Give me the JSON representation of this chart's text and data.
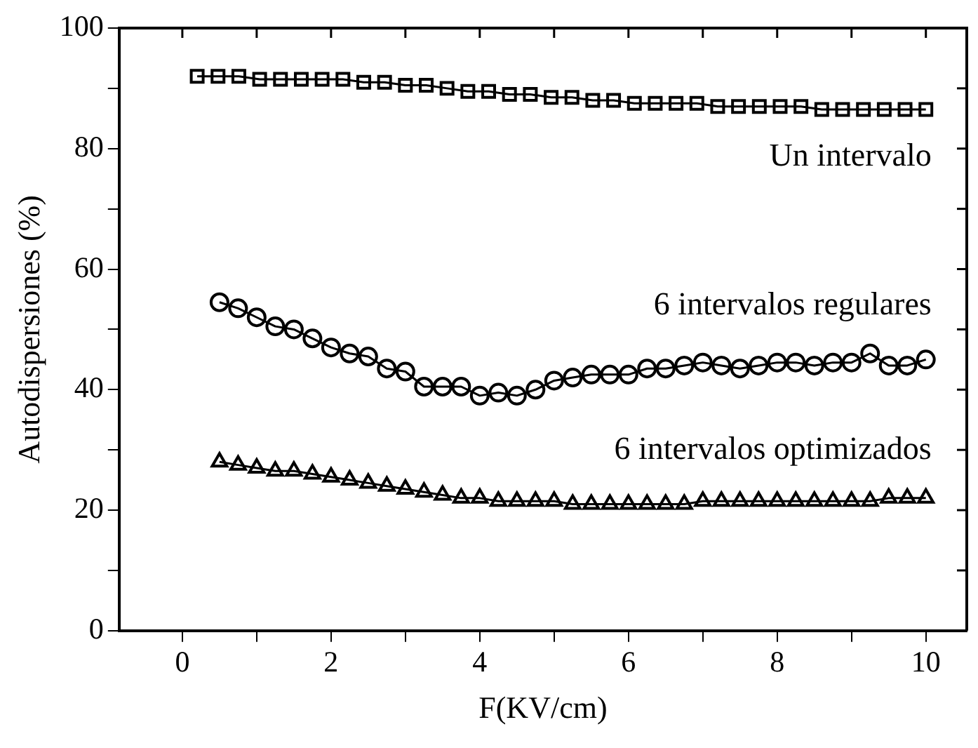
{
  "chart_data": {
    "type": "line",
    "xlabel": "F(KV/cm)",
    "ylabel": "Autodispersiones (%)",
    "xlim": [
      -0.85,
      10.55
    ],
    "ylim": [
      0,
      100
    ],
    "xticks": [
      0,
      {
        "value": 1,
        "label": null
      },
      2,
      {
        "value": 3,
        "label": null
      },
      4,
      {
        "value": 5,
        "label": null
      },
      6,
      {
        "value": 7,
        "label": null
      },
      8,
      {
        "value": 9,
        "label": null
      },
      10
    ],
    "yticks": [
      0,
      {
        "value": 10,
        "label": null
      },
      20,
      {
        "value": 30,
        "label": null
      },
      40,
      {
        "value": 50,
        "label": null
      },
      60,
      {
        "value": 70,
        "label": null
      },
      80,
      {
        "value": 90,
        "label": null
      },
      100
    ],
    "grid": false,
    "legend": false,
    "line_style": "solid",
    "series": [
      {
        "marker": "square",
        "color": "#000000",
        "x": [
          0.2,
          0.48,
          0.76,
          1.04,
          1.32,
          1.6,
          1.88,
          2.16,
          2.44,
          2.72,
          3.0,
          3.28,
          3.56,
          3.84,
          4.12,
          4.4,
          4.68,
          4.96,
          5.24,
          5.52,
          5.8,
          6.08,
          6.36,
          6.64,
          6.92,
          7.2,
          7.48,
          7.76,
          8.04,
          8.32,
          8.6,
          8.88,
          9.16,
          9.44,
          9.72,
          10.0
        ],
        "values": [
          92,
          92,
          92,
          91.5,
          91.5,
          91.5,
          91.5,
          91.5,
          91,
          91,
          90.5,
          90.5,
          90,
          89.5,
          89.5,
          89,
          89,
          88.5,
          88.5,
          88,
          88,
          87.5,
          87.5,
          87.5,
          87.5,
          87,
          87,
          87,
          87,
          87,
          86.5,
          86.5,
          86.5,
          86.5,
          86.5,
          86.5
        ]
      },
      {
        "marker": "circle",
        "color": "#000000",
        "x": [
          0.5,
          0.75,
          1.0,
          1.25,
          1.5,
          1.75,
          2.0,
          2.25,
          2.5,
          2.75,
          3.0,
          3.25,
          3.5,
          3.75,
          4.0,
          4.25,
          4.5,
          4.75,
          5.0,
          5.25,
          5.5,
          5.75,
          6.0,
          6.25,
          6.5,
          6.75,
          7.0,
          7.25,
          7.5,
          7.75,
          8.0,
          8.25,
          8.5,
          8.75,
          9.0,
          9.25,
          9.5,
          9.75,
          10.0
        ],
        "values": [
          54.5,
          53.5,
          52,
          50.5,
          50,
          48.5,
          47,
          46,
          45.5,
          43.5,
          43,
          40.5,
          40.5,
          40.5,
          39,
          39.5,
          39,
          40,
          41.5,
          42,
          42.5,
          42.5,
          42.5,
          43.5,
          43.5,
          44,
          44.5,
          44,
          43.5,
          44,
          44.5,
          44.5,
          44,
          44.5,
          44.5,
          46,
          44,
          44,
          45
        ]
      },
      {
        "marker": "triangle",
        "color": "#000000",
        "x": [
          0.5,
          0.75,
          1.0,
          1.25,
          1.5,
          1.75,
          2.0,
          2.25,
          2.5,
          2.75,
          3.0,
          3.25,
          3.5,
          3.75,
          4.0,
          4.25,
          4.5,
          4.75,
          5.0,
          5.25,
          5.5,
          5.75,
          6.0,
          6.25,
          6.5,
          6.75,
          7.0,
          7.25,
          7.5,
          7.75,
          8.0,
          8.25,
          8.5,
          8.75,
          9.0,
          9.25,
          9.5,
          9.75,
          10.0
        ],
        "values": [
          28,
          27.5,
          27,
          26.5,
          26.5,
          26,
          25.5,
          25,
          24.5,
          24,
          23.5,
          23,
          22.5,
          22,
          22,
          21.5,
          21.5,
          21.5,
          21.5,
          21,
          21,
          21,
          21,
          21,
          21,
          21,
          21.5,
          21.5,
          21.5,
          21.5,
          21.5,
          21.5,
          21.5,
          21.5,
          21.5,
          21.5,
          22,
          22,
          22
        ]
      }
    ],
    "annotations": [
      "Un intervalo",
      "6 intervalos regulares",
      "6 intervalos optimizados"
    ]
  }
}
